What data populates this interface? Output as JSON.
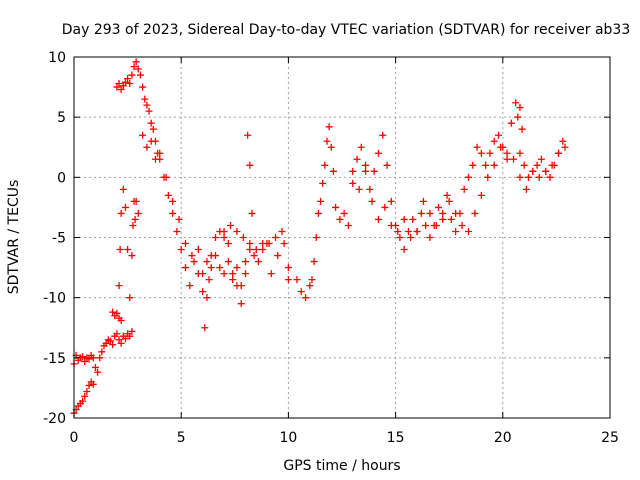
{
  "chart_data": {
    "type": "scatter",
    "title": "Day 293 of 2023, Sidereal Day-to-day VTEC variation (SDTVAR) for receiver ab33",
    "xlabel": "GPS time / hours",
    "ylabel": "SDTVAR / TECUs",
    "xlim": [
      0,
      25
    ],
    "ylim": [
      -20,
      10
    ],
    "xticks": [
      0,
      5,
      10,
      15,
      20,
      25
    ],
    "yticks": [
      -20,
      -15,
      -10,
      -5,
      0,
      5,
      10
    ],
    "grid": true,
    "marker": "plus",
    "color": "#ff0000",
    "series": [
      {
        "name": "SDTVAR",
        "x": [
          0.0,
          0.1,
          0.2,
          0.3,
          0.4,
          0.5,
          0.6,
          0.7,
          0.8,
          0.9,
          0.0,
          0.1,
          0.2,
          0.3,
          0.4,
          0.5,
          0.6,
          0.7,
          0.8,
          0.9,
          1.0,
          1.1,
          1.2,
          1.3,
          1.4,
          1.5,
          1.6,
          1.7,
          1.8,
          1.9,
          2.0,
          2.1,
          2.2,
          2.3,
          2.4,
          2.5,
          2.6,
          2.7,
          1.8,
          1.9,
          2.0,
          2.1,
          2.2,
          2.1,
          2.15,
          2.2,
          2.3,
          2.4,
          2.5,
          2.6,
          2.7,
          2.75,
          2.8,
          2.85,
          2.9,
          3.0,
          2.0,
          2.1,
          2.2,
          2.3,
          2.4,
          2.5,
          2.6,
          2.7,
          2.8,
          2.9,
          3.0,
          3.1,
          3.2,
          3.3,
          3.4,
          3.5,
          3.6,
          3.7,
          3.8,
          3.9,
          4.0,
          4.2,
          4.4,
          4.6,
          4.8,
          5.0,
          5.2,
          5.4,
          5.6,
          5.8,
          6.0,
          6.2,
          6.4,
          6.6,
          6.8,
          7.0,
          7.2,
          7.4,
          7.6,
          7.8,
          8.0,
          8.2,
          8.4,
          8.6,
          8.8,
          9.0,
          3.2,
          3.4,
          3.6,
          3.8,
          4.0,
          4.3,
          4.6,
          4.9,
          5.2,
          5.5,
          5.8,
          6.0,
          6.1,
          6.2,
          6.3,
          6.4,
          6.6,
          6.8,
          7.0,
          7.2,
          7.4,
          7.6,
          7.8,
          8.0,
          8.1,
          8.2,
          8.3,
          7.0,
          7.3,
          7.6,
          7.9,
          8.2,
          8.5,
          8.8,
          9.1,
          9.4,
          9.7,
          10.0,
          9.2,
          9.5,
          9.8,
          10.0,
          10.4,
          10.6,
          10.8,
          11.0,
          11.1,
          11.2,
          11.3,
          11.4,
          11.5,
          11.6,
          11.7,
          11.8,
          11.9,
          12.0,
          12.1,
          12.2,
          12.4,
          12.6,
          12.8,
          13.0,
          13.2,
          13.4,
          13.6,
          13.8,
          14.0,
          14.2,
          14.4,
          14.6,
          14.8,
          15.0,
          15.2,
          15.4,
          15.6,
          15.8,
          16.0,
          16.2,
          16.4,
          16.6,
          16.8,
          17.0,
          17.2,
          17.4,
          17.6,
          17.8,
          18.0,
          18.2,
          18.4,
          18.6,
          18.8,
          19.0,
          19.2,
          19.4,
          19.6,
          19.8,
          20.0,
          20.2,
          20.4,
          20.6,
          20.8,
          21.0,
          21.2,
          21.4,
          21.6,
          21.8,
          22.0,
          22.2,
          22.4,
          22.6,
          22.8,
          13.0,
          13.3,
          13.6,
          13.9,
          14.2,
          14.5,
          14.8,
          15.1,
          15.4,
          15.7,
          16.0,
          16.3,
          16.6,
          16.9,
          17.2,
          17.5,
          17.8,
          18.1,
          18.4,
          18.7,
          19.0,
          19.3,
          19.6,
          19.9,
          20.2,
          20.5,
          20.8,
          21.1,
          21.4,
          21.7,
          22.0,
          22.3,
          22.6,
          22.9,
          20.7,
          20.8,
          20.9
        ],
        "y": [
          -15.5,
          -14.8,
          -15.2,
          -15.0,
          -14.9,
          -15.3,
          -15.0,
          -15.1,
          -14.8,
          -15.0,
          -19.6,
          -19.3,
          -19.0,
          -18.8,
          -18.6,
          -18.2,
          -17.8,
          -17.3,
          -17.0,
          -17.2,
          -15.8,
          -16.2,
          -15.0,
          -14.5,
          -14.0,
          -13.8,
          -13.5,
          -13.6,
          -13.9,
          -13.2,
          -13.0,
          -13.5,
          -13.8,
          -13.2,
          -13.4,
          -13.0,
          -13.2,
          -12.8,
          -11.2,
          -11.5,
          -11.3,
          -11.7,
          -11.9,
          -9.0,
          -6.0,
          -3.0,
          -1.0,
          -2.5,
          -6.0,
          -10.0,
          -6.5,
          -4.0,
          -2.0,
          -3.5,
          -2.0,
          -3.0,
          7.5,
          7.8,
          7.3,
          7.6,
          7.9,
          8.2,
          7.8,
          8.5,
          9.2,
          9.6,
          9.0,
          8.5,
          7.5,
          6.5,
          6.0,
          5.5,
          4.5,
          4.0,
          3.0,
          2.0,
          1.5,
          0.0,
          -1.5,
          -3.0,
          -4.5,
          -6.0,
          -7.5,
          -9.0,
          -7.0,
          -6.0,
          -8.0,
          -7.0,
          -6.5,
          -5.0,
          -4.5,
          -5.0,
          -5.5,
          -8.0,
          -7.5,
          -9.0,
          -7.0,
          -6.0,
          -6.5,
          -7.0,
          -5.5,
          -5.5,
          3.5,
          2.5,
          3.0,
          1.5,
          2.0,
          0.0,
          -2.0,
          -3.5,
          -5.5,
          -6.5,
          -8.0,
          -9.5,
          -12.5,
          -10.0,
          -8.5,
          -7.5,
          -6.5,
          -7.5,
          -8.0,
          -7.0,
          -8.5,
          -9.0,
          -10.5,
          -8.0,
          3.5,
          1.0,
          -3.0,
          -4.5,
          -4.0,
          -4.5,
          -5.0,
          -5.5,
          -6.0,
          -6.0,
          -5.5,
          -5.0,
          -4.5,
          -8.5,
          -8.0,
          -6.5,
          -5.5,
          -7.5,
          -8.5,
          -9.5,
          -10.0,
          -9.0,
          -8.5,
          -7.0,
          -5.0,
          -3.0,
          -2.0,
          -0.5,
          1.0,
          3.0,
          4.2,
          2.5,
          0.5,
          -2.5,
          -3.5,
          -3.0,
          -4.0,
          0.5,
          1.5,
          2.5,
          1.0,
          -1.0,
          0.5,
          2.0,
          3.5,
          1.0,
          -2.0,
          -4.0,
          -5.0,
          -6.0,
          -4.5,
          -3.5,
          -4.5,
          -3.0,
          -4.0,
          -5.0,
          -4.0,
          -2.5,
          -3.0,
          -1.5,
          -3.5,
          -4.5,
          -3.0,
          -1.0,
          0.0,
          1.0,
          2.5,
          2.0,
          1.0,
          2.0,
          3.0,
          3.5,
          2.5,
          1.5,
          4.5,
          6.2,
          2.0,
          1.0,
          0.0,
          0.5,
          1.0,
          1.5,
          0.5,
          0.0,
          1.0,
          2.0,
          3.0,
          -0.5,
          -1.0,
          0.5,
          -2.0,
          -3.5,
          -2.5,
          -4.0,
          -4.5,
          -3.5,
          -5.0,
          -4.5,
          -2.0,
          -3.0,
          -4.0,
          -3.5,
          -2.0,
          -3.0,
          -4.0,
          -4.5,
          -3.0,
          -1.5,
          0.0,
          1.0,
          2.5,
          2.0,
          1.5,
          0.0,
          -1.0,
          0.5,
          0.0,
          0.5,
          1.0,
          2.0,
          2.5,
          5.0,
          5.8,
          4.0
        ]
      }
    ]
  }
}
